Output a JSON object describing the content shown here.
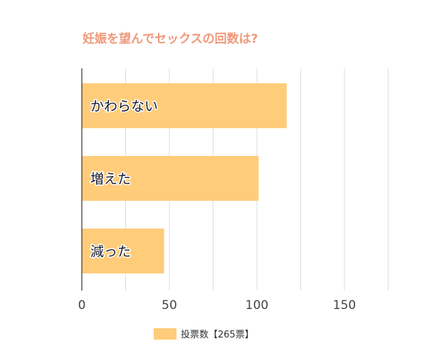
{
  "chart_data": {
    "type": "bar",
    "orientation": "horizontal",
    "title": "妊娠を望んでセックスの回数は?",
    "categories": [
      "かわらない",
      "増えた",
      "減った"
    ],
    "series": [
      {
        "name": "投票数【265票】",
        "values": [
          117,
          101,
          47
        ]
      }
    ],
    "xlim": [
      0,
      150
    ],
    "x_ticks": [
      "0",
      "50",
      "100",
      "150"
    ],
    "grid": true,
    "legend": "bottom",
    "colors": {
      "bar": "#ffcc7a",
      "title": "#f0987a",
      "grid": "#dddddd",
      "axis": "#333333",
      "label": "#1a1a2e"
    }
  }
}
